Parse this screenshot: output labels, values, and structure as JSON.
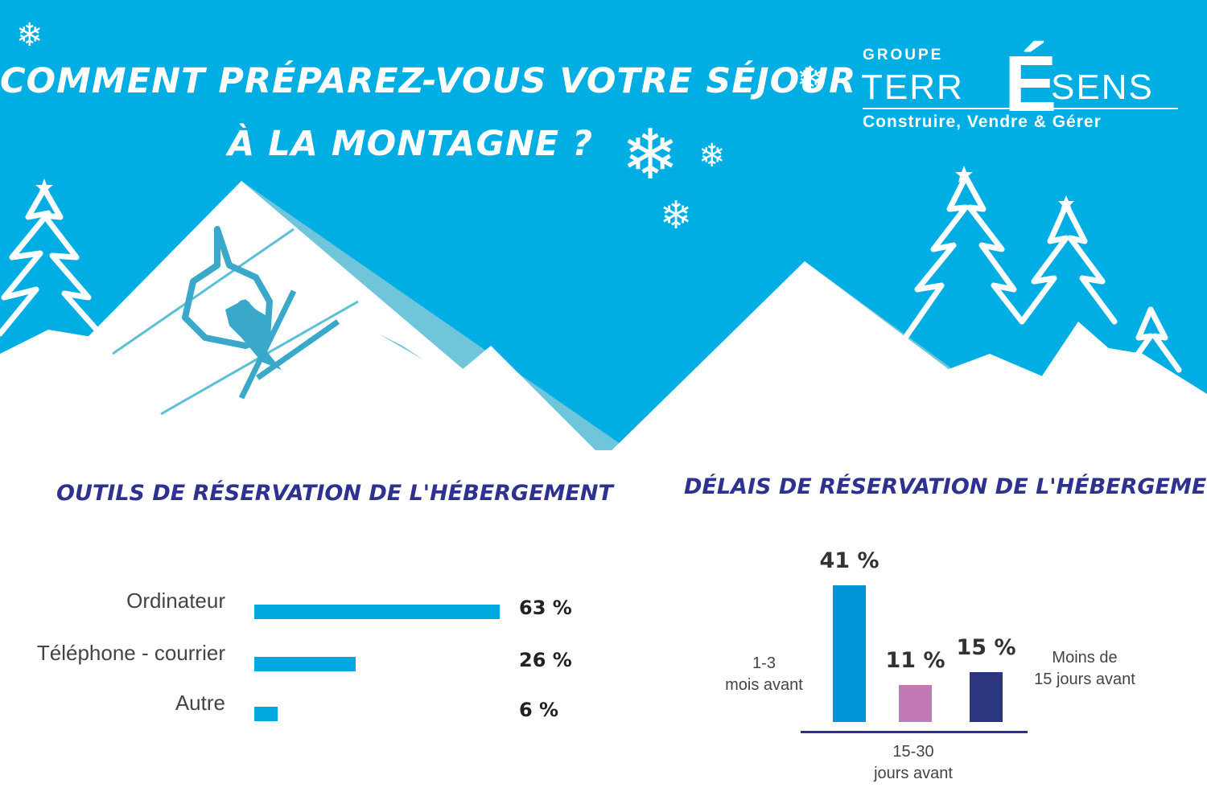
{
  "header": {
    "title_line1": "COMMENT PRÉPAREZ-VOUS VOTRE SÉJOUR",
    "title_line2": "À LA MONTAGNE ?"
  },
  "logo": {
    "groupe": "GROUPE",
    "name_part1": "TERR",
    "name_accent": "É",
    "name_part2": "SENS",
    "tagline": "Construire, Vendre & Gérer"
  },
  "colors": {
    "sky": "#00aee4",
    "mountain_shadow": "#6fc5d9",
    "bar_blue": "#00a8e1",
    "title_navy": "#2e3190",
    "bar_mid": "#0094d9",
    "bar_pink": "#c17ab5",
    "bar_dark": "#2b3580"
  },
  "decor_icons": [
    "snowflake-icon",
    "chairlift-icon",
    "pine-tree-icon",
    "star-icon"
  ],
  "chart_data": [
    {
      "type": "bar",
      "orientation": "horizontal",
      "title": "OUTILS DE RÉSERVATION DE L'HÉBERGEMENT",
      "categories": [
        "Ordinateur",
        "Téléphone - courrier",
        "Autre"
      ],
      "values": [
        63,
        26,
        6
      ],
      "value_labels": [
        "63 %",
        "26 %",
        "6 %"
      ],
      "unit": "%"
    },
    {
      "type": "bar",
      "orientation": "vertical",
      "title": "DÉLAIS DE RÉSERVATION DE L'HÉBERGEMENT",
      "categories": [
        "1-3 mois avant",
        "15-30 jours avant",
        "Moins de 15 jours avant"
      ],
      "category_labels": [
        [
          "1-3",
          "mois avant"
        ],
        [
          "15-30",
          "jours avant"
        ],
        [
          "Moins de",
          "15 jours avant"
        ]
      ],
      "values": [
        41,
        11,
        15
      ],
      "value_labels": [
        "41 %",
        "11 %",
        "15 %"
      ],
      "unit": "%"
    }
  ]
}
